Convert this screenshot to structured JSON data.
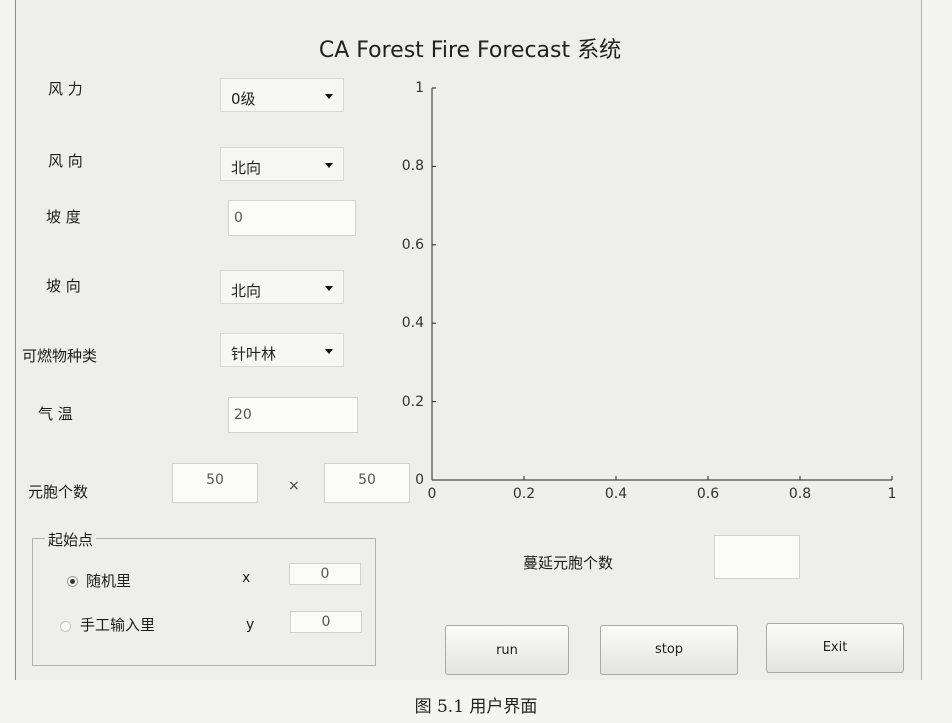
{
  "window": {
    "title": "CA Forest Fire Forecast  系统"
  },
  "controls": {
    "wind_force": {
      "label": "风 力",
      "value": "0级"
    },
    "wind_direction": {
      "label": "风 向",
      "value": "北向"
    },
    "slope": {
      "label": "坡  度",
      "value": "0"
    },
    "aspect": {
      "label": "坡  向",
      "value": "北向"
    },
    "fuel_type": {
      "label": "可燃物种类",
      "value": "针叶林"
    },
    "temperature": {
      "label": "气  温",
      "value": "20"
    },
    "cell_count": {
      "label": "元胞个数",
      "x_value": "50",
      "separator": "×",
      "y_value": "50"
    }
  },
  "start_point": {
    "title": "起始点",
    "random": {
      "label": "随机里",
      "selected": true
    },
    "manual": {
      "label": "手工输入里",
      "selected": false
    },
    "x": {
      "label": "x",
      "value": "0"
    },
    "y": {
      "label": "y",
      "value": "0"
    }
  },
  "spread": {
    "label": "蔓延元胞个数",
    "value": ""
  },
  "buttons": {
    "run": "run",
    "stop": "stop",
    "exit": "Exit"
  },
  "chart_data": {
    "type": "line",
    "title": "",
    "xlabel": "",
    "ylabel": "",
    "xlim": [
      0,
      1
    ],
    "ylim": [
      0,
      1
    ],
    "x_ticks": [
      "0",
      "0.2",
      "0.4",
      "0.6",
      "0.8",
      "1"
    ],
    "y_ticks": [
      "0",
      "0.2",
      "0.4",
      "0.6",
      "0.8",
      "1"
    ],
    "grid": false,
    "series": []
  },
  "caption": "图 5.1   用户界面"
}
